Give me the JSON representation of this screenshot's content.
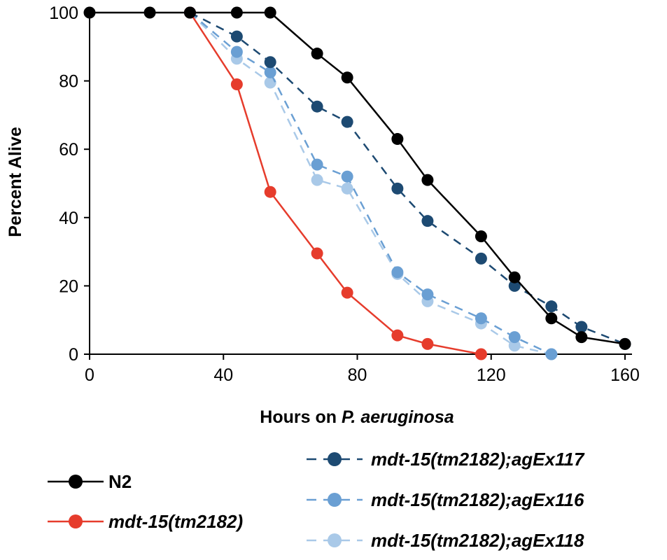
{
  "chart_data": {
    "type": "line",
    "xlabel": {
      "prefix": "Hours on ",
      "italic": "P. aeruginosa"
    },
    "ylabel": "Percent Alive",
    "xlim": [
      0,
      160
    ],
    "ylim": [
      0,
      100
    ],
    "xticks": [
      0,
      40,
      80,
      120,
      160
    ],
    "yticks": [
      0,
      20,
      40,
      60,
      80,
      100
    ],
    "grid": false,
    "series": [
      {
        "name": "N2",
        "color": "#000000",
        "dashed": false,
        "x": [
          0,
          18,
          30,
          44,
          54,
          68,
          77,
          92,
          101,
          117,
          127,
          138,
          147,
          160
        ],
        "y": [
          100,
          100,
          100,
          100,
          100,
          88,
          81,
          63,
          51,
          34.5,
          22.5,
          10.5,
          5,
          3
        ]
      },
      {
        "name": "mdt-15(tm2182)",
        "color": "#e63c2c",
        "dashed": false,
        "x": [
          30,
          44,
          54,
          68,
          77,
          92,
          101,
          117
        ],
        "y": [
          100,
          79,
          47.5,
          29.5,
          18,
          5.5,
          3,
          0
        ]
      },
      {
        "name": "mdt-15(tm2182);agEx117",
        "color": "#1d4a72",
        "dashed": true,
        "x": [
          30,
          44,
          54,
          68,
          77,
          92,
          101,
          117,
          127,
          138,
          147,
          160
        ],
        "y": [
          100,
          93,
          85.5,
          72.5,
          68,
          48.5,
          39,
          28,
          20,
          14,
          8,
          3
        ]
      },
      {
        "name": "mdt-15(tm2182);agEx116",
        "color": "#6a9fd3",
        "dashed": true,
        "x": [
          30,
          44,
          54,
          68,
          77,
          92,
          101,
          117,
          127,
          138
        ],
        "y": [
          100,
          88.5,
          82.5,
          55.5,
          52,
          24,
          17.5,
          10.5,
          5,
          0
        ]
      },
      {
        "name": "mdt-15(tm2182);agEx118",
        "color": "#a9c9e8",
        "dashed": true,
        "x": [
          30,
          44,
          54,
          68,
          77,
          92,
          101,
          117,
          127,
          138
        ],
        "y": [
          100,
          86.5,
          79.5,
          51,
          48.5,
          23.5,
          15.5,
          9,
          2.5,
          0
        ]
      }
    ]
  }
}
